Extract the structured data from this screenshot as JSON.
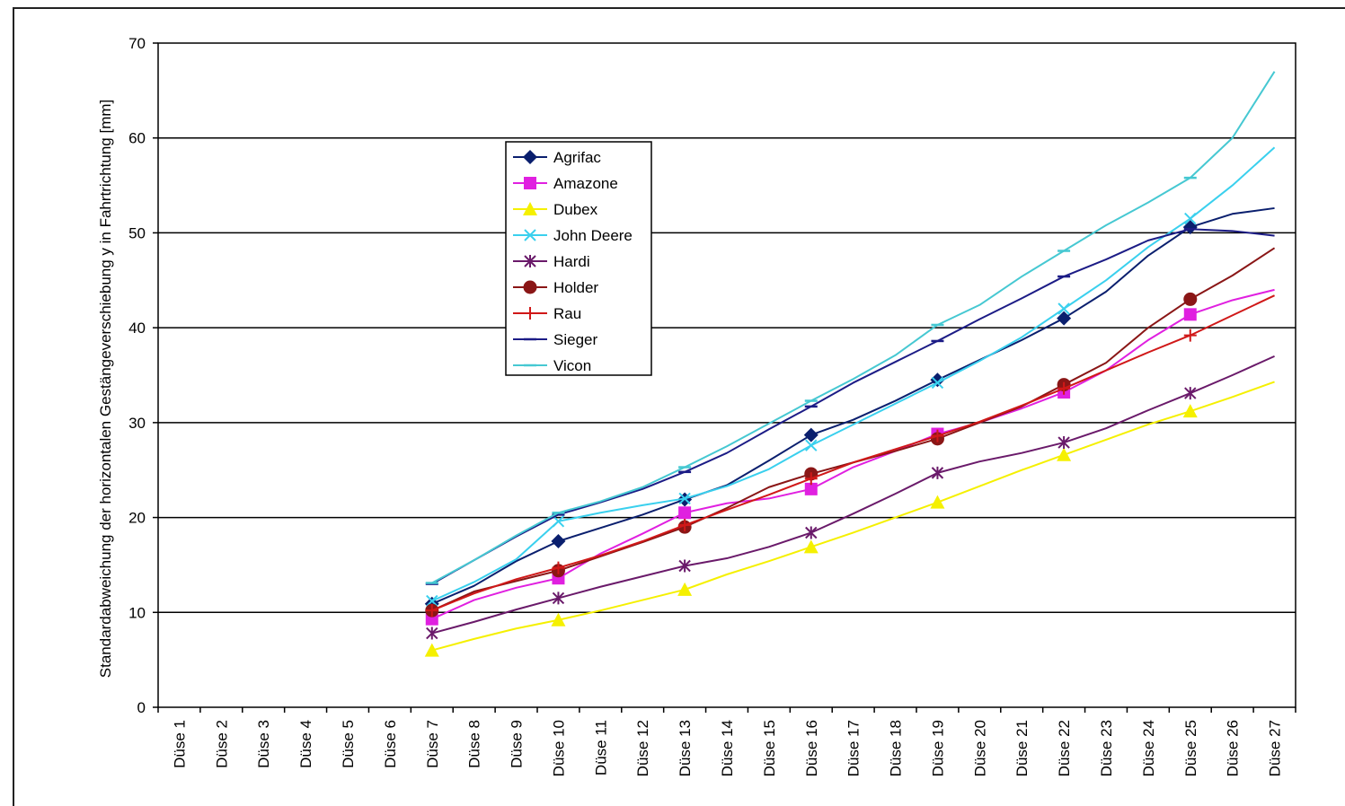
{
  "chart_data": {
    "type": "line",
    "title": "",
    "xlabel": "",
    "ylabel": "Standardabweichung der horizontalen Gestängeverschiebung y in Fahrtrichtung [mm]",
    "ylim": [
      0,
      70
    ],
    "yticks": [
      "0",
      "10",
      "20",
      "30",
      "40",
      "50",
      "60",
      "70"
    ],
    "grid": true,
    "legend_position": "upper-left-inside",
    "categories": [
      "Düse 1",
      "Düse 2",
      "Düse 3",
      "Düse 4",
      "Düse 5",
      "Düse 6",
      "Düse 7",
      "Düse 8",
      "Düse 9",
      "Düse 10",
      "Düse 11",
      "Düse 12",
      "Düse 13",
      "Düse 14",
      "Düse 15",
      "Düse 16",
      "Düse 17",
      "Düse 18",
      "Düse 19",
      "Düse 20",
      "Düse 21",
      "Düse 22",
      "Düse 23",
      "Düse 24",
      "Düse 25",
      "Düse 26",
      "Düse 27"
    ],
    "series": [
      {
        "name": "Agrifac",
        "color": "#0a1f6e",
        "marker": "diamond",
        "values": [
          null,
          null,
          null,
          null,
          null,
          null,
          10.9,
          12.8,
          15.4,
          17.5,
          18.9,
          20.3,
          21.9,
          23.4,
          26,
          28.7,
          30.3,
          32.3,
          34.5,
          36.6,
          38.7,
          41,
          43.8,
          47.6,
          50.6,
          52,
          52.6
        ]
      },
      {
        "name": "Amazone",
        "color": "#e020e0",
        "marker": "square",
        "values": [
          null,
          null,
          null,
          null,
          null,
          null,
          9.3,
          11.3,
          12.6,
          13.6,
          16.2,
          18.3,
          20.5,
          21.5,
          22,
          23,
          25.3,
          27,
          28.8,
          30,
          31.5,
          33.2,
          35.5,
          38.7,
          41.4,
          42.9,
          44
        ]
      },
      {
        "name": "Dubex",
        "color": "#f5f000",
        "marker": "triangle",
        "values": [
          null,
          null,
          null,
          null,
          null,
          null,
          6,
          7.2,
          8.3,
          9.2,
          10.2,
          11.3,
          12.4,
          14,
          15.4,
          16.9,
          18.4,
          20,
          21.6,
          23.3,
          25,
          26.6,
          28.2,
          29.8,
          31.2,
          32.7,
          34.3
        ]
      },
      {
        "name": "John Deere",
        "color": "#3ad0ee",
        "marker": "x",
        "values": [
          null,
          null,
          null,
          null,
          null,
          null,
          11.2,
          13.2,
          15.6,
          19.6,
          20.5,
          21.3,
          22,
          23.3,
          25.1,
          27.6,
          29.8,
          32,
          34.2,
          36.5,
          39,
          42,
          45,
          48.5,
          51.5,
          55,
          59
        ]
      },
      {
        "name": "Hardi",
        "color": "#6a1a6a",
        "marker": "asterisk",
        "values": [
          null,
          null,
          null,
          null,
          null,
          null,
          7.8,
          9,
          10.3,
          11.5,
          12.7,
          13.8,
          14.9,
          15.7,
          16.9,
          18.4,
          20.4,
          22.5,
          24.7,
          25.9,
          26.8,
          27.9,
          29.4,
          31.3,
          33.1,
          35,
          37
        ]
      },
      {
        "name": "Holder",
        "color": "#8a1616",
        "marker": "circle",
        "values": [
          null,
          null,
          null,
          null,
          null,
          null,
          10.2,
          12.2,
          13.3,
          14.4,
          15.9,
          17.4,
          19,
          21,
          23.2,
          24.6,
          25.8,
          27,
          28.3,
          30,
          31.7,
          34,
          36.3,
          40,
          43,
          45.5,
          48.4
        ]
      },
      {
        "name": "Rau",
        "color": "#d01818",
        "marker": "plus",
        "values": [
          null,
          null,
          null,
          null,
          null,
          null,
          10.2,
          12,
          13.5,
          14.7,
          16,
          17.5,
          19.2,
          20.8,
          22.4,
          24.1,
          25.8,
          27.2,
          28.6,
          30.1,
          31.8,
          33.6,
          35.5,
          37.4,
          39.2,
          41.3,
          43.4
        ]
      },
      {
        "name": "Sieger",
        "color": "#1c1c86",
        "marker": "dash",
        "values": [
          null,
          null,
          null,
          null,
          null,
          null,
          13,
          15.5,
          18,
          20.3,
          21.6,
          23,
          24.8,
          26.8,
          29.3,
          31.7,
          34.2,
          36.4,
          38.6,
          40.9,
          43.1,
          45.4,
          47.2,
          49.2,
          50.4,
          50.2,
          49.7
        ]
      },
      {
        "name": "Vicon",
        "color": "#46c8d2",
        "marker": "dash",
        "values": [
          null,
          null,
          null,
          null,
          null,
          null,
          13.1,
          15.5,
          18.1,
          20.5,
          21.7,
          23.2,
          25.3,
          27.5,
          29.9,
          32.3,
          34.6,
          37.1,
          40.3,
          42.4,
          45.4,
          48.1,
          50.8,
          53.2,
          55.8,
          60,
          67
        ]
      }
    ]
  }
}
